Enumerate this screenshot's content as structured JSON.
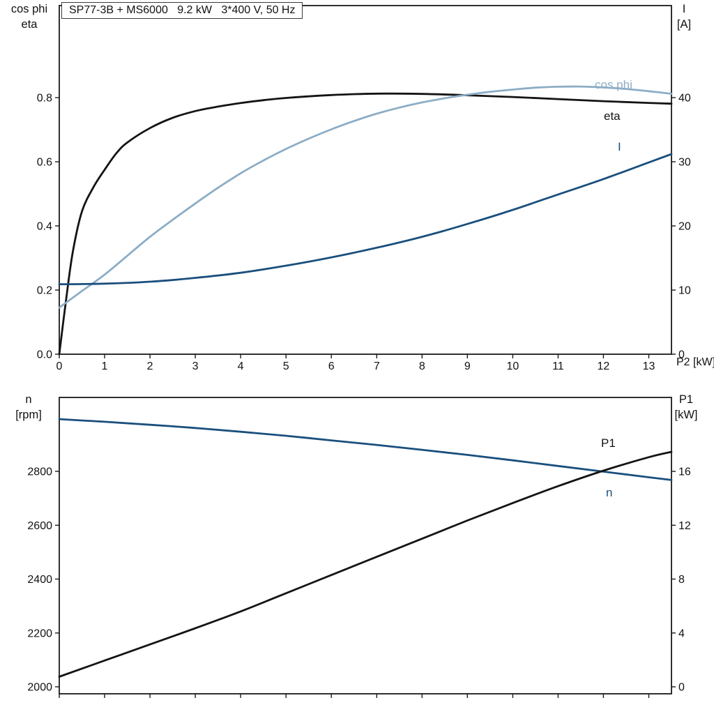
{
  "chart_data": [
    {
      "type": "line",
      "title": "SP77-3B + MS6000   9.2 kW   3*400 V, 50 Hz",
      "x_axis": {
        "label": "P2 [kW]",
        "range": [
          0,
          13.5
        ],
        "ticks": [
          0,
          1,
          2,
          3,
          4,
          5,
          6,
          7,
          8,
          9,
          10,
          11,
          12,
          13
        ],
        "tick_labels": [
          "0",
          "1",
          "2",
          "3",
          "4",
          "5",
          "6",
          "7",
          "8",
          "9",
          "10",
          "11",
          "12",
          "13"
        ]
      },
      "left_axis": {
        "title_lines": [
          "cos phi",
          "eta"
        ],
        "range": [
          0,
          1.09
        ],
        "ticks": [
          0,
          0.2,
          0.4,
          0.6,
          0.8
        ],
        "tick_labels": [
          "0.0",
          "0.2",
          "0.4",
          "0.6",
          "0.8"
        ]
      },
      "right_axis": {
        "title_lines": [
          "I",
          "[A]"
        ],
        "range": [
          0,
          54.5
        ],
        "ticks": [
          0,
          10,
          20,
          30,
          40
        ],
        "tick_labels": [
          "0",
          "10",
          "20",
          "30",
          "40"
        ]
      },
      "grid": false,
      "series": [
        {
          "name": "eta",
          "label": "eta",
          "axis": "left",
          "color": "#141414",
          "x": [
            0,
            0.15,
            0.3,
            0.5,
            0.75,
            1,
            1.25,
            1.5,
            2,
            2.5,
            3,
            3.5,
            4,
            4.5,
            5,
            6,
            7,
            8,
            9,
            10,
            11,
            12,
            13,
            13.5
          ],
          "y": [
            0,
            0.17,
            0.32,
            0.445,
            0.52,
            0.575,
            0.625,
            0.66,
            0.705,
            0.737,
            0.758,
            0.772,
            0.783,
            0.792,
            0.799,
            0.808,
            0.8125,
            0.8115,
            0.8075,
            0.802,
            0.7955,
            0.789,
            0.7835,
            0.781
          ]
        },
        {
          "name": "cos-phi",
          "label": "cos phi",
          "axis": "left",
          "color": "#8cadc6",
          "x": [
            0,
            0.5,
            1,
            1.5,
            2,
            2.5,
            3,
            3.5,
            4,
            4.5,
            5,
            5.5,
            6,
            6.5,
            7,
            7.5,
            8,
            8.5,
            9,
            9.5,
            10,
            10.5,
            11,
            11.5,
            12,
            12.5,
            13,
            13.5
          ],
          "y": [
            0.145,
            0.197,
            0.248,
            0.307,
            0.366,
            0.419,
            0.47,
            0.519,
            0.564,
            0.604,
            0.64,
            0.672,
            0.701,
            0.727,
            0.75,
            0.769,
            0.785,
            0.798,
            0.809,
            0.818,
            0.825,
            0.831,
            0.834,
            0.8345,
            0.832,
            0.827,
            0.82,
            0.812
          ]
        },
        {
          "name": "current",
          "label": "I",
          "axis": "right",
          "color": "#1a4f7d",
          "x": [
            0,
            1,
            2,
            3,
            4,
            5,
            6,
            7,
            8,
            9,
            10,
            11,
            12,
            13,
            13.5
          ],
          "y": [
            10.9,
            11.0,
            11.3,
            11.9,
            12.7,
            13.8,
            15.1,
            16.6,
            18.3,
            20.3,
            22.5,
            24.9,
            27.3,
            29.9,
            31.2
          ]
        }
      ]
    },
    {
      "type": "line",
      "title": "",
      "x_axis": {
        "label": "",
        "range": [
          0,
          13.5
        ],
        "ticks": [
          0,
          1,
          2,
          3,
          4,
          5,
          6,
          7,
          8,
          9,
          10,
          11,
          12,
          13
        ],
        "tick_labels": []
      },
      "left_axis": {
        "title_lines": [
          "n",
          "[rpm]"
        ],
        "range": [
          1975,
          3075
        ],
        "ticks": [
          2000,
          2200,
          2400,
          2600,
          2800
        ],
        "tick_labels": [
          "2000",
          "2200",
          "2400",
          "2600",
          "2800"
        ]
      },
      "right_axis": {
        "title_lines": [
          "P1",
          "[kW]"
        ],
        "range": [
          -0.5,
          21.5
        ],
        "ticks": [
          0,
          4,
          8,
          12,
          16
        ],
        "tick_labels": [
          "0",
          "4",
          "8",
          "12",
          "16"
        ]
      },
      "grid": false,
      "series": [
        {
          "name": "n",
          "label": "n",
          "axis": "left",
          "color": "#1a4f7d",
          "x": [
            0,
            1,
            2,
            3,
            4,
            5,
            6,
            7,
            8,
            9,
            10,
            11,
            12,
            13,
            13.5
          ],
          "y": [
            2994,
            2984,
            2973,
            2961,
            2947,
            2932,
            2915,
            2898,
            2880,
            2861,
            2841,
            2820,
            2799,
            2778,
            2768
          ]
        },
        {
          "name": "p1",
          "label": "P1",
          "axis": "right",
          "color": "#141414",
          "x": [
            0,
            1,
            2,
            3,
            4,
            5,
            6,
            7,
            8,
            9,
            10,
            11,
            12,
            13,
            13.5
          ],
          "y": [
            0.75,
            1.95,
            3.15,
            4.35,
            5.6,
            6.95,
            8.3,
            9.65,
            11.0,
            12.35,
            13.65,
            14.9,
            16.05,
            17.05,
            17.45
          ]
        }
      ]
    }
  ]
}
